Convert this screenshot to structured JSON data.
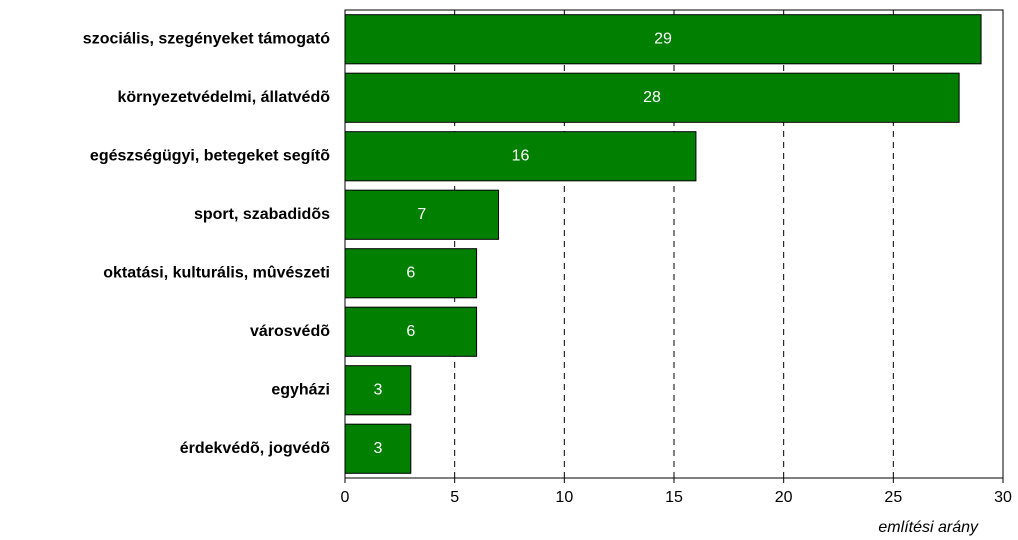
{
  "chart_data": {
    "type": "bar",
    "orientation": "horizontal",
    "categories": [
      "szociális, szegényeket támogató",
      "környezetvédelmi, állatvédõ",
      "egészségügyi, betegeket segítõ",
      "sport, szabadidõs",
      "oktatási, kulturális, mûvészeti",
      "városvédõ",
      "egyházi",
      "érdekvédõ, jogvédõ"
    ],
    "values": [
      29,
      28,
      16,
      7,
      6,
      6,
      3,
      3
    ],
    "color": "#007f00",
    "xlabel": "említési arány",
    "xlim": [
      0,
      30
    ],
    "xticks": [
      0,
      5,
      10,
      15,
      20,
      25,
      30
    ],
    "grid": true
  }
}
